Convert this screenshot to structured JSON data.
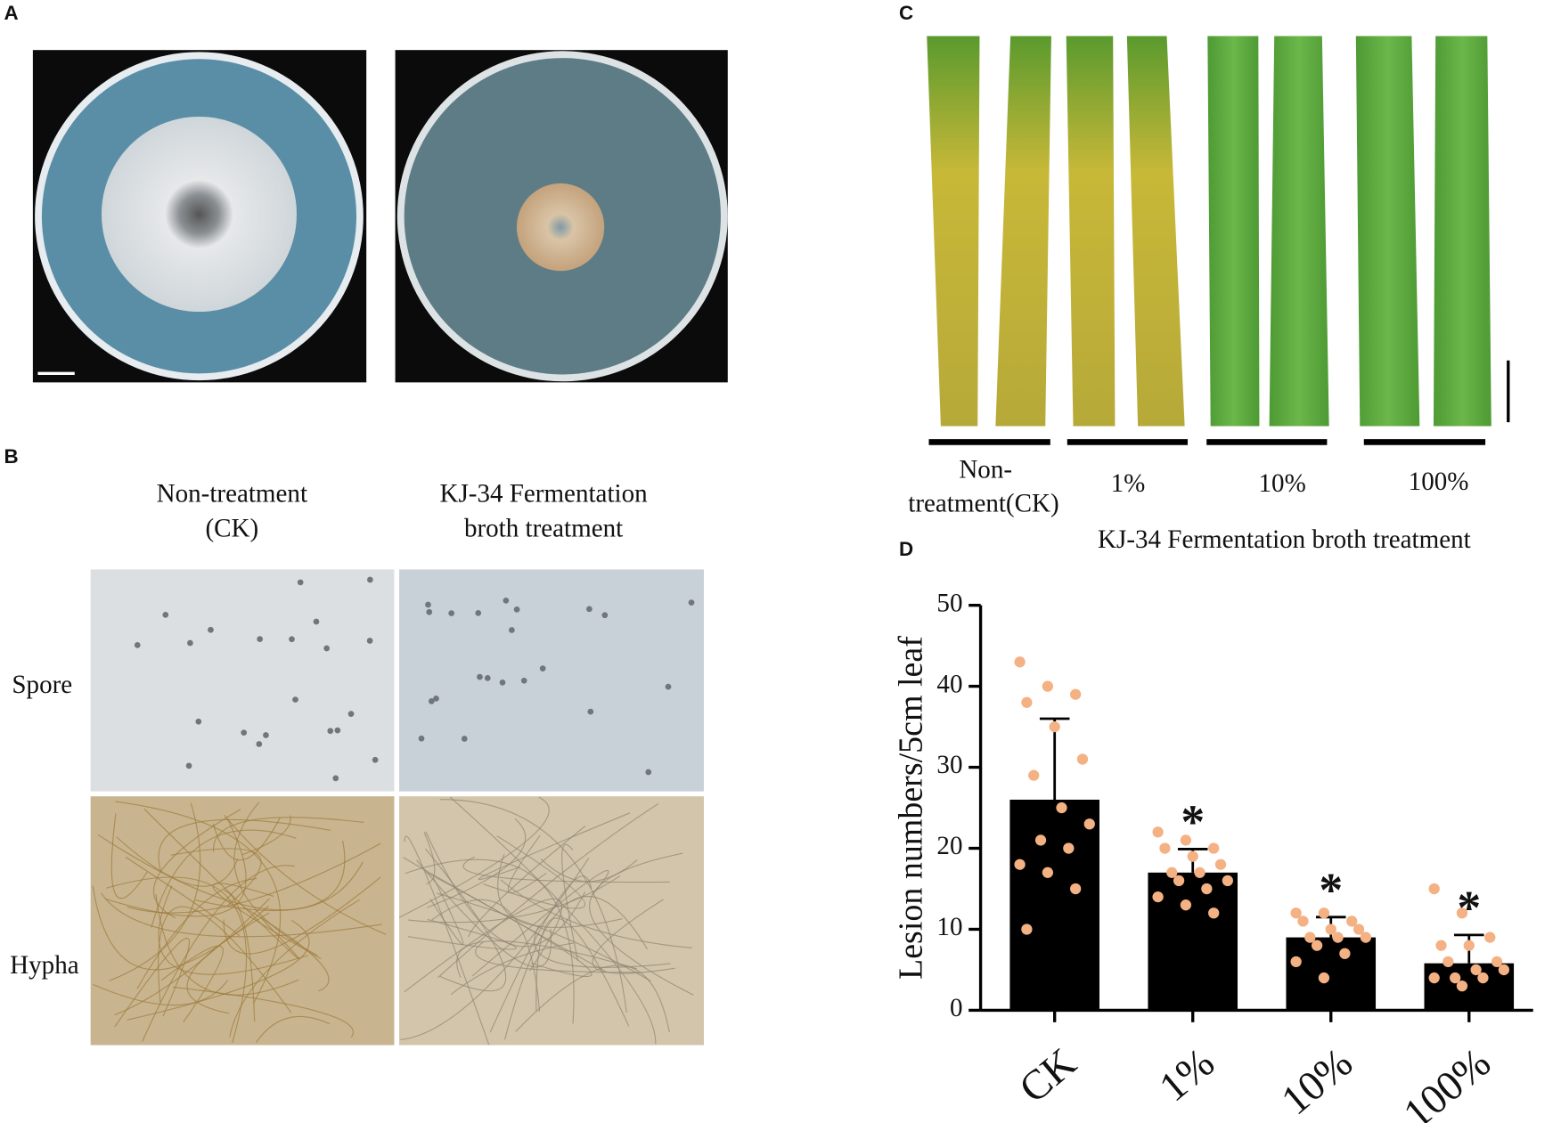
{
  "panels": {
    "a": {
      "label": "A"
    },
    "b": {
      "label": "B",
      "columns": [
        [
          "Non-treatment",
          "(CK)"
        ],
        [
          "KJ-34 Fermentation",
          "broth treatment"
        ]
      ],
      "rows": [
        "Spore",
        "Hypha"
      ]
    },
    "c": {
      "label": "C",
      "groups": [
        [
          "Non-",
          "treatment(CK)"
        ],
        [
          "1%"
        ],
        [
          "10%"
        ],
        [
          "100%"
        ]
      ],
      "caption": "KJ-34 Fermentation broth treatment"
    },
    "d": {
      "label": "D"
    }
  },
  "chart_data": {
    "type": "bar",
    "ylabel": "Lesion numbers/5cm leaf",
    "categories": [
      "CK",
      "1%",
      "10%",
      "100%"
    ],
    "values": [
      26,
      17,
      9,
      5.8
    ],
    "errors": [
      10,
      2.9,
      2.5,
      3.5
    ],
    "points": [
      [
        43,
        40,
        39,
        38,
        35,
        31,
        29,
        25,
        23,
        21,
        20,
        18,
        17,
        15,
        10
      ],
      [
        22,
        21,
        20,
        20,
        19,
        18,
        17,
        17,
        16,
        16,
        15,
        14,
        13,
        12
      ],
      [
        12,
        12,
        11,
        11,
        10,
        10,
        9,
        9,
        9,
        8,
        7,
        6,
        4
      ],
      [
        15,
        12,
        9,
        8,
        8,
        6,
        6,
        5,
        5,
        4,
        4,
        4,
        3
      ]
    ],
    "significance": [
      null,
      "*",
      "*",
      "*"
    ],
    "color": "#000000",
    "point_color": "#f4b183",
    "ylim": [
      0,
      50
    ],
    "yticks": [
      0,
      10,
      20,
      30,
      40,
      50
    ]
  }
}
